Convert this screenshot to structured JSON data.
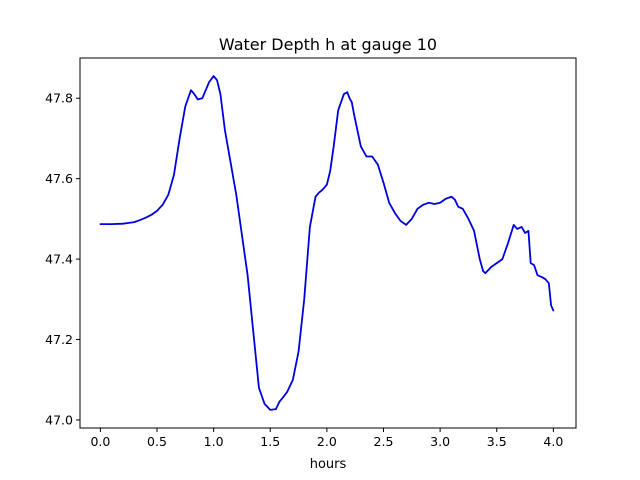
{
  "chart_data": {
    "type": "line",
    "title": "Water Depth h at gauge 10",
    "xlabel": "hours",
    "ylabel": "",
    "xlim": [
      -0.18,
      4.2
    ],
    "ylim": [
      46.98,
      47.9
    ],
    "xticks": [
      0.0,
      0.5,
      1.0,
      1.5,
      2.0,
      2.5,
      3.0,
      3.5,
      4.0
    ],
    "xtick_labels": [
      "0.0",
      "0.5",
      "1.0",
      "1.5",
      "2.0",
      "2.5",
      "3.0",
      "3.5",
      "4.0"
    ],
    "yticks": [
      47.0,
      47.2,
      47.4,
      47.6,
      47.8
    ],
    "ytick_labels": [
      "47.0",
      "47.2",
      "47.4",
      "47.6",
      "47.8"
    ],
    "grid": false,
    "series": [
      {
        "color": "#0000dd",
        "x": [
          0.0,
          0.1,
          0.2,
          0.3,
          0.35,
          0.4,
          0.45,
          0.5,
          0.55,
          0.6,
          0.65,
          0.7,
          0.75,
          0.8,
          0.83,
          0.86,
          0.9,
          0.93,
          0.96,
          1.0,
          1.03,
          1.06,
          1.1,
          1.15,
          1.2,
          1.25,
          1.3,
          1.35,
          1.4,
          1.45,
          1.5,
          1.55,
          1.58,
          1.61,
          1.65,
          1.7,
          1.75,
          1.8,
          1.85,
          1.9,
          1.93,
          1.96,
          2.0,
          2.03,
          2.06,
          2.1,
          2.15,
          2.18,
          2.2,
          2.22,
          2.24,
          2.27,
          2.3,
          2.35,
          2.4,
          2.45,
          2.5,
          2.55,
          2.6,
          2.65,
          2.7,
          2.75,
          2.8,
          2.85,
          2.9,
          2.95,
          3.0,
          3.05,
          3.1,
          3.13,
          3.16,
          3.2,
          3.25,
          3.3,
          3.35,
          3.38,
          3.4,
          3.45,
          3.5,
          3.55,
          3.6,
          3.65,
          3.68,
          3.72,
          3.75,
          3.78,
          3.8,
          3.83,
          3.86,
          3.9,
          3.93,
          3.96,
          3.98,
          4.0
        ],
        "y": [
          47.487,
          47.487,
          47.488,
          47.492,
          47.497,
          47.503,
          47.51,
          47.52,
          47.535,
          47.56,
          47.61,
          47.7,
          47.78,
          47.82,
          47.81,
          47.797,
          47.8,
          47.82,
          47.84,
          47.855,
          47.845,
          47.81,
          47.72,
          47.64,
          47.56,
          47.46,
          47.36,
          47.22,
          47.08,
          47.04,
          47.025,
          47.027,
          47.045,
          47.055,
          47.07,
          47.1,
          47.17,
          47.3,
          47.48,
          47.555,
          47.565,
          47.572,
          47.585,
          47.62,
          47.68,
          47.77,
          47.81,
          47.815,
          47.8,
          47.79,
          47.76,
          47.72,
          47.68,
          47.655,
          47.655,
          47.635,
          47.59,
          47.54,
          47.515,
          47.495,
          47.485,
          47.5,
          47.525,
          47.535,
          47.54,
          47.537,
          47.54,
          47.55,
          47.555,
          47.548,
          47.53,
          47.525,
          47.5,
          47.47,
          47.4,
          47.37,
          47.365,
          47.38,
          47.39,
          47.4,
          47.44,
          47.485,
          47.475,
          47.48,
          47.465,
          47.47,
          47.39,
          47.385,
          47.36,
          47.355,
          47.35,
          47.34,
          47.285,
          47.272
        ]
      }
    ]
  }
}
